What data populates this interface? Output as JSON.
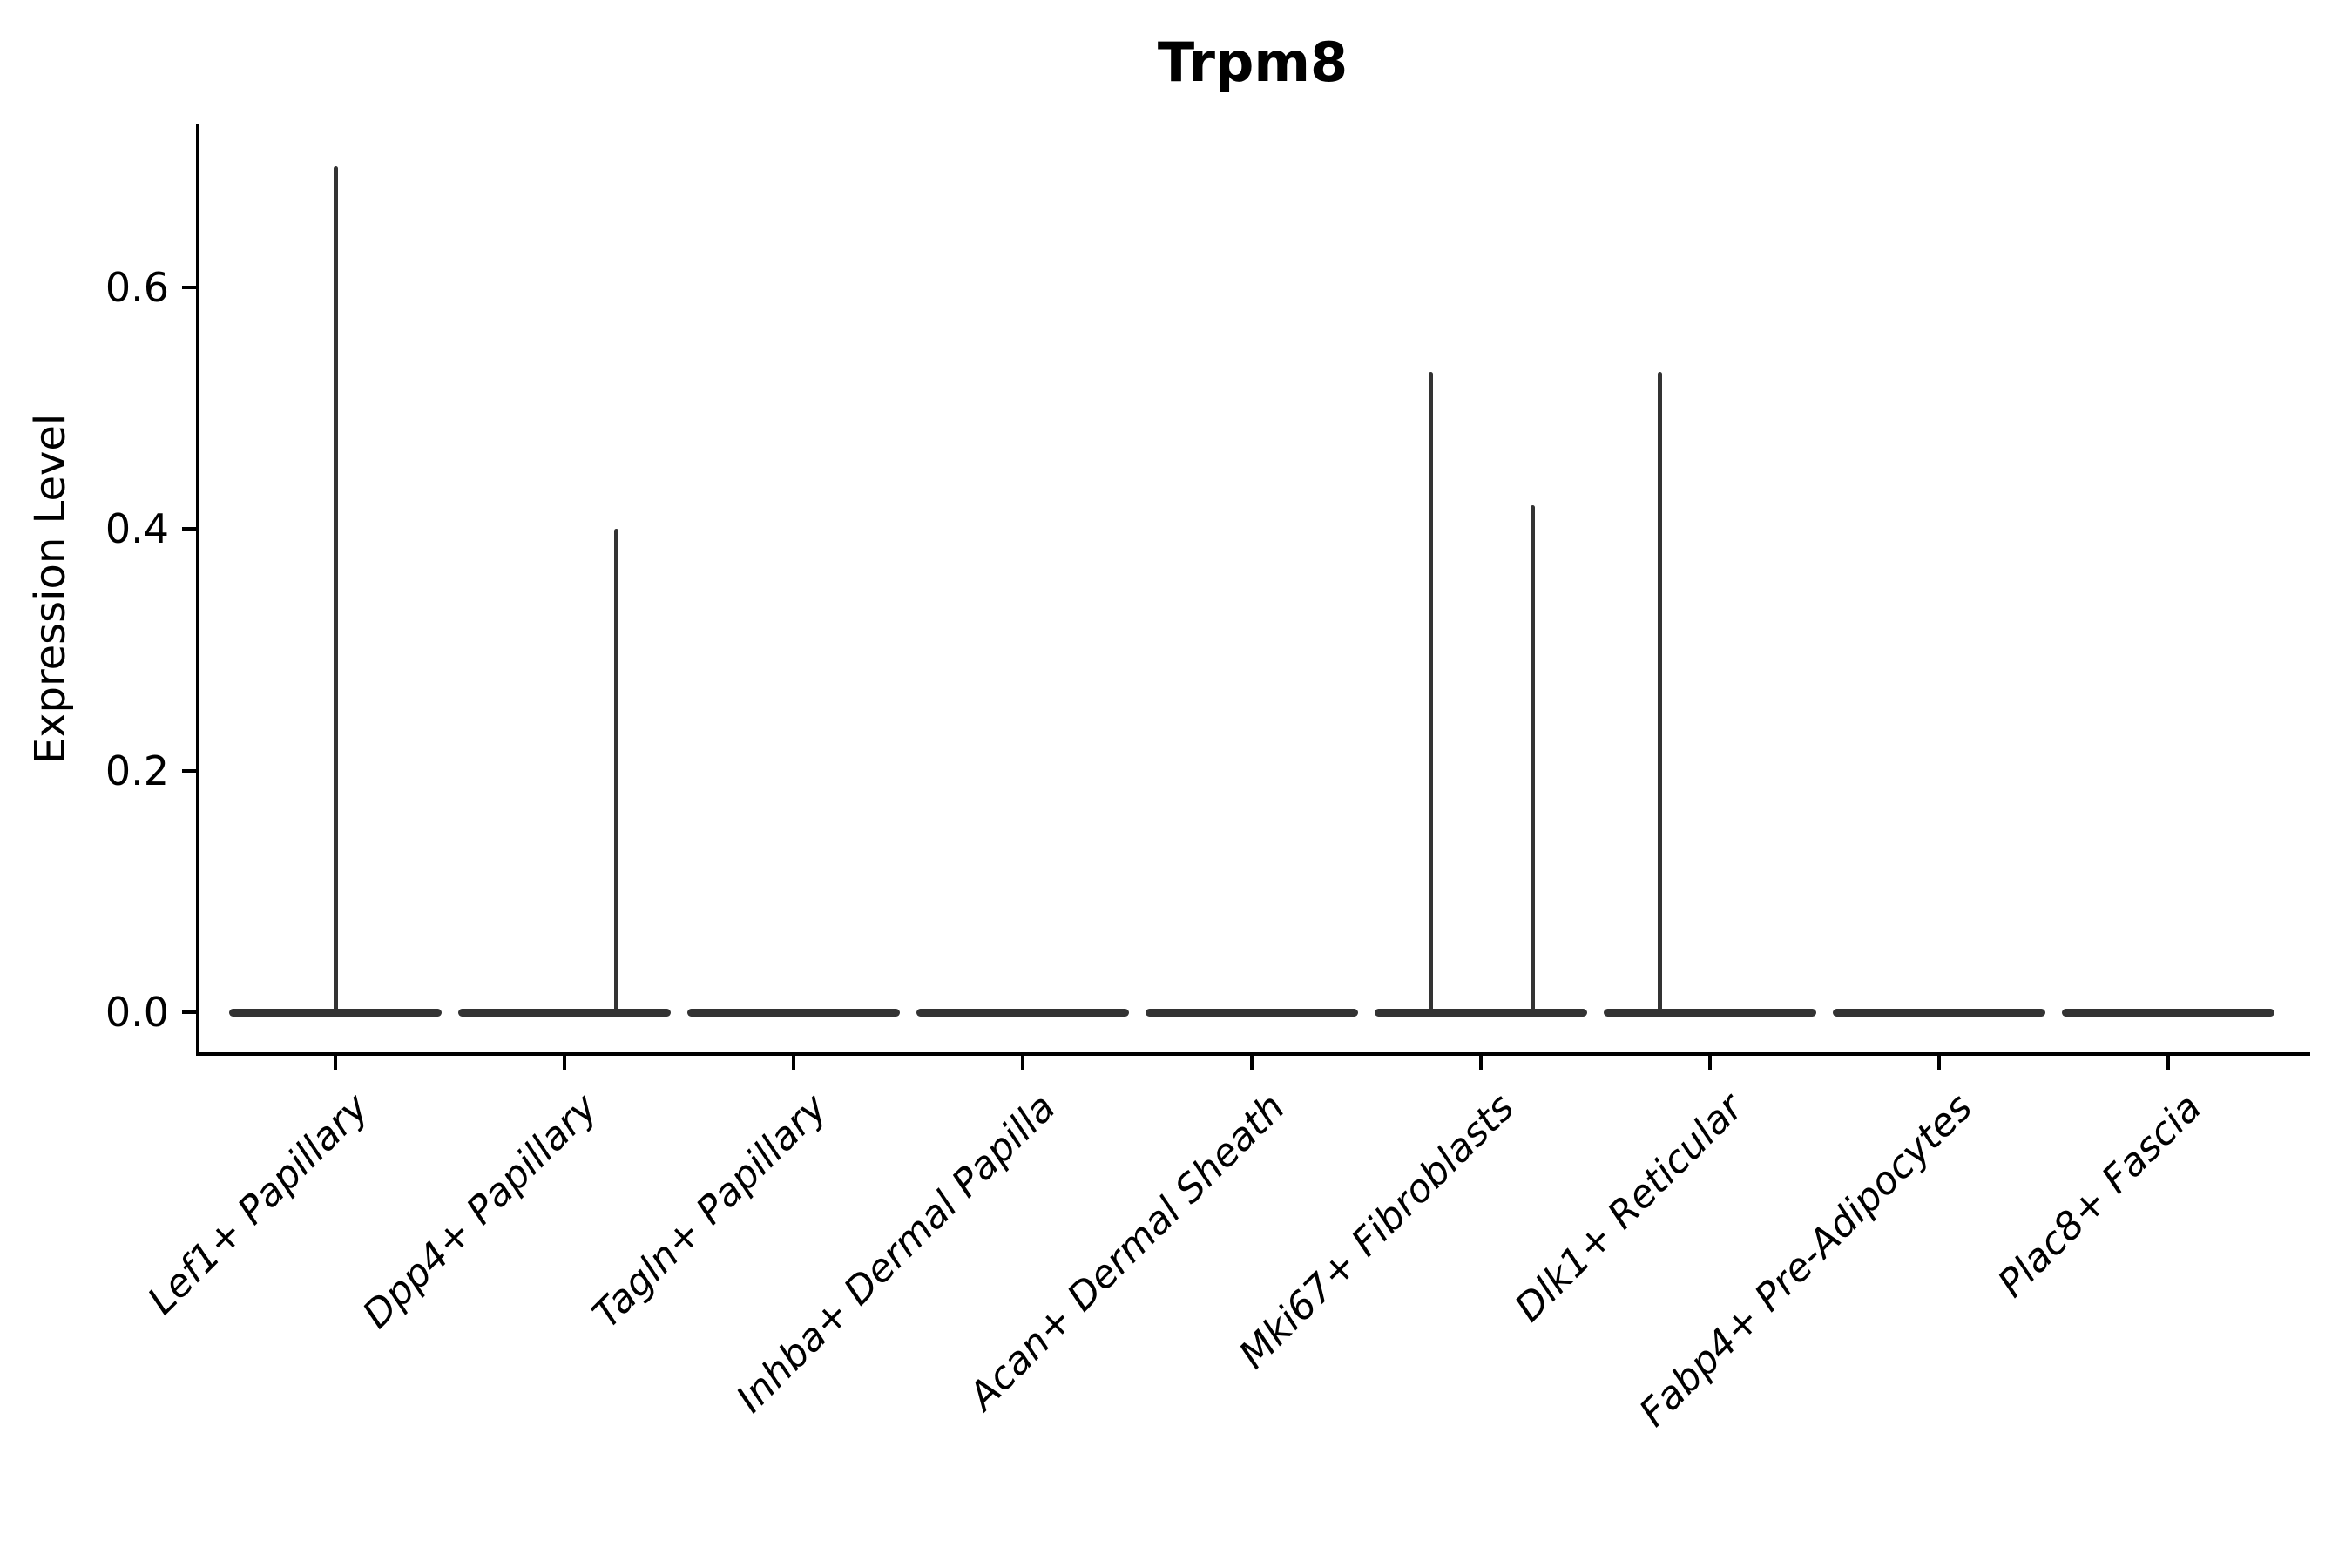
{
  "chart_data": {
    "type": "violin",
    "title": "Trpm8",
    "ylabel": "Expression Level",
    "xlabel": "",
    "ytick_labels": [
      "0.0",
      "0.2",
      "0.4",
      "0.6"
    ],
    "yticks": [
      0.0,
      0.2,
      0.4,
      0.6
    ],
    "ylim": [
      -0.034,
      0.735
    ],
    "grid": false,
    "legend": false,
    "categories": [
      "Lef1+ Papillary",
      "Dpp4+ Papillary",
      "Tagln+ Papillary",
      "Inhba+ Dermal Papilla",
      "Acan+ Dermal Sheath",
      "Mki67+ Fibroblasts",
      "Dlk1+ Reticular",
      "Fabp4+ Pre-Adipocytes",
      "Plac8+ Fascia"
    ],
    "violins": {
      "baseline_value": 0.0,
      "body_width_frac": 0.93,
      "note": "all 9 groups have a flattened near-zero density body at expression 0",
      "max_expression": [
        0.7,
        0.4,
        0.0,
        0.0,
        0.0,
        0.53,
        0.53,
        0.0,
        0.0
      ]
    },
    "spikes": [
      {
        "category_index": 0,
        "category": "Lef1+ Papillary",
        "x_offset_frac": 0.0,
        "value": 0.7
      },
      {
        "category_index": 1,
        "category": "Dpp4+ Papillary",
        "x_offset_frac": 0.225,
        "value": 0.4
      },
      {
        "category_index": 5,
        "category": "Mki67+ Fibroblasts",
        "x_offset_frac": -0.22,
        "value": 0.53
      },
      {
        "category_index": 5,
        "category": "Mki67+ Fibroblasts",
        "x_offset_frac": 0.228,
        "value": 0.42
      },
      {
        "category_index": 6,
        "category": "Dlk1+ Reticular",
        "x_offset_frac": -0.22,
        "value": 0.53
      }
    ],
    "colors": {
      "violin": "#333333",
      "axis": "#000000",
      "text": "#000000",
      "background": "#ffffff"
    }
  }
}
